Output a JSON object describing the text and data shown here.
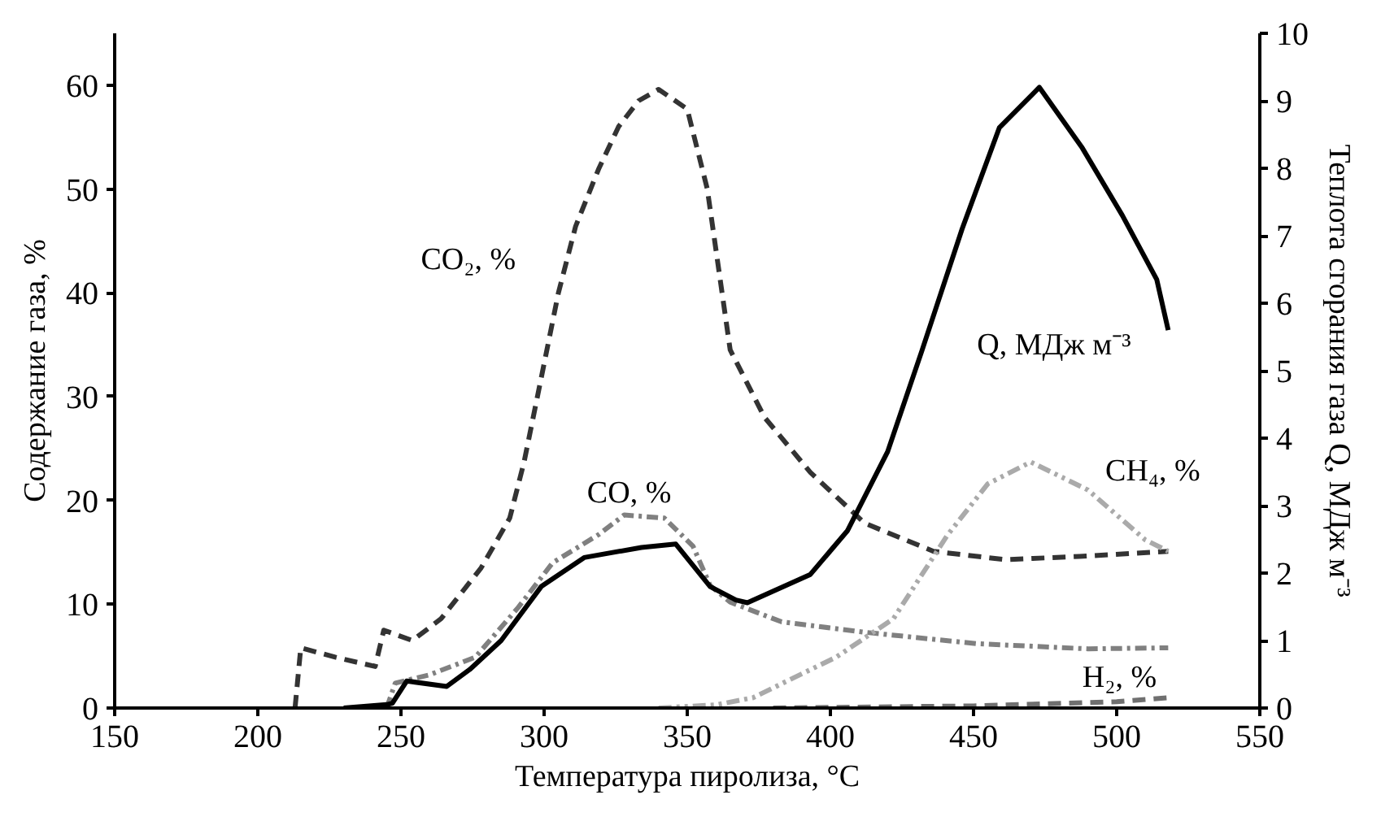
{
  "chart_data": {
    "type": "line",
    "xlabel": "Температура пиролиза, °C",
    "ylabel": "Содержание газа, %",
    "y2label": "Теплота сгорания газа Q, МДж м⁻³",
    "xlim": [
      150,
      550
    ],
    "xticks": [
      150,
      200,
      250,
      300,
      350,
      400,
      450,
      500,
      550
    ],
    "ylim": [
      0,
      65
    ],
    "yticks": [
      0,
      10,
      20,
      30,
      40,
      50,
      60
    ],
    "y2lim": [
      0,
      10
    ],
    "y2ticks": [
      0,
      1,
      2,
      3,
      4,
      5,
      6,
      7,
      8,
      9,
      10
    ],
    "grid": false,
    "marker": "none",
    "series": [
      {
        "name": "CO₂, %",
        "color": "#333333",
        "line_style": "dashed",
        "x": [
          213,
          215,
          227,
          241,
          244,
          254,
          264,
          278,
          288,
          293,
          299,
          305,
          311,
          319,
          326,
          333,
          340,
          350,
          357,
          365,
          377,
          393,
          412,
          436,
          461,
          487,
          518
        ],
        "values": [
          0,
          5.8,
          4.9,
          4,
          7.5,
          6.5,
          8.6,
          13.5,
          18.3,
          23.7,
          31.8,
          40,
          46.4,
          51.9,
          56,
          58.5,
          59.6,
          57.7,
          50,
          34.5,
          28,
          22.7,
          17.8,
          15.1,
          14.3,
          14.6,
          15.1
        ]
      },
      {
        "name": "CO, %",
        "color": "#808080",
        "line_style": "dashdot",
        "x": [
          245,
          248,
          260,
          276,
          291,
          303,
          319,
          328,
          342,
          352,
          358,
          365,
          383,
          412,
          451,
          490,
          518
        ],
        "values": [
          0,
          2.4,
          3.2,
          4.9,
          9.7,
          14,
          16.7,
          18.6,
          18.3,
          15.6,
          11.8,
          10.2,
          8.3,
          7.3,
          6.2,
          5.7,
          5.8
        ]
      },
      {
        "name": "CH₄, %",
        "color": "#aaaaaa",
        "line_style": "dashdotdot",
        "x": [
          340,
          360,
          373,
          402,
          422,
          441,
          455,
          470,
          490,
          510,
          518
        ],
        "values": [
          0,
          0.3,
          1,
          4.9,
          8.6,
          16.7,
          21.6,
          23.7,
          21,
          16.2,
          15.1
        ]
      },
      {
        "name": "H₂, %",
        "color": "#707070",
        "line_style": "dashed",
        "x": [
          380,
          450,
          500,
          518
        ],
        "values": [
          0,
          0.2,
          0.6,
          1
        ]
      },
      {
        "name": "Q, МДж м⁻³",
        "color": "#000000",
        "line_style": "solid",
        "axis": "y2",
        "x": [
          230,
          245,
          247,
          252,
          266,
          274,
          285,
          299,
          314,
          334,
          346,
          358,
          367,
          371,
          393,
          406,
          420,
          432,
          446,
          459,
          473,
          488,
          502,
          514,
          518
        ],
        "values": [
          0,
          0.05,
          0.07,
          0.4,
          0.32,
          0.57,
          1.0,
          1.8,
          2.23,
          2.38,
          2.43,
          1.8,
          1.6,
          1.56,
          1.98,
          2.63,
          3.8,
          5.3,
          7.1,
          8.6,
          9.2,
          8.3,
          7.3,
          6.35,
          5.6
        ]
      }
    ]
  }
}
